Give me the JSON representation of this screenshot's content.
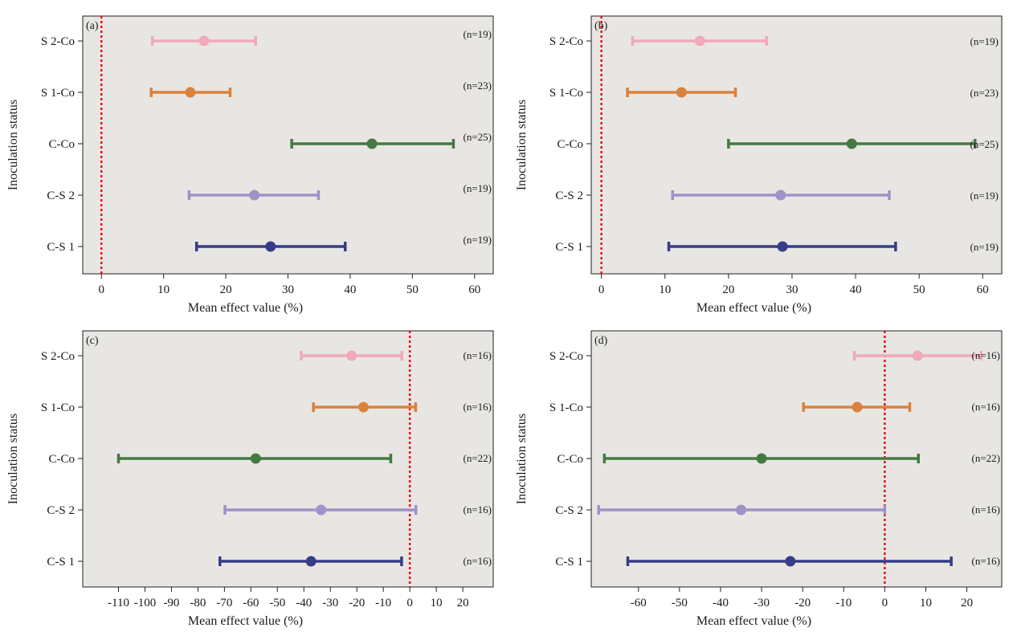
{
  "colors": {
    "background": "#e8e6e3",
    "zero_line": "#e8121b",
    "S 2-Co": "#f0aab9",
    "S 1-Co": "#d9823d",
    "C-Co": "#447a42",
    "C-S 2": "#9e92c8",
    "C-S 1": "#363c88"
  },
  "chart_data": [
    {
      "type": "forest",
      "panel_label": "(a)",
      "xlabel": "Mean effect value (%)",
      "ylabel": "Inoculation status",
      "xlim": [
        -3,
        63
      ],
      "xticks": [
        0,
        10,
        20,
        30,
        40,
        50,
        60
      ],
      "zero_line": 0,
      "categories": [
        "S 2-Co",
        "S 1-Co",
        "C-Co",
        "C-S 2",
        "C-S 1"
      ],
      "series": [
        {
          "category": "S 2-Co",
          "mean": 16.5,
          "low": 8.2,
          "high": 24.8,
          "n": "(n=19)"
        },
        {
          "category": "S 1-Co",
          "mean": 14.3,
          "low": 8.0,
          "high": 20.7,
          "n": "(n=23)"
        },
        {
          "category": "C-Co",
          "mean": 43.5,
          "low": 30.6,
          "high": 56.6,
          "n": "(n=25)"
        },
        {
          "category": "C-S 2",
          "mean": 24.6,
          "low": 14.1,
          "high": 34.9,
          "n": "(n=19)"
        },
        {
          "category": "C-S 1",
          "mean": 27.2,
          "low": 15.3,
          "high": 39.2,
          "n": "(n=19)"
        }
      ]
    },
    {
      "type": "forest",
      "panel_label": "(b)",
      "xlabel": "Mean effect value (%)",
      "ylabel": "Inoculation status",
      "xlim": [
        -1.6,
        63
      ],
      "xticks": [
        0,
        10,
        20,
        30,
        40,
        50,
        60
      ],
      "zero_line": 0,
      "categories": [
        "S 2-Co",
        "S 1-Co",
        "C-Co",
        "C-S 2",
        "C-S 1"
      ],
      "series": [
        {
          "category": "S 2-Co",
          "mean": 15.5,
          "low": 4.9,
          "high": 26.0,
          "n": "(n=19)"
        },
        {
          "category": "S 1-Co",
          "mean": 12.6,
          "low": 4.1,
          "high": 21.1,
          "n": "(n=23)"
        },
        {
          "category": "C-Co",
          "mean": 39.4,
          "low": 20.0,
          "high": 58.8,
          "n": "(n=25)"
        },
        {
          "category": "C-S 2",
          "mean": 28.2,
          "low": 11.2,
          "high": 45.3,
          "n": "(n=19)"
        },
        {
          "category": "C-S 1",
          "mean": 28.5,
          "low": 10.6,
          "high": 46.3,
          "n": "(n=19)"
        }
      ]
    },
    {
      "type": "forest",
      "panel_label": "(c)",
      "xlabel": "Mean effect value (%)",
      "ylabel": "Inoculation status",
      "xlim": [
        -123.5,
        31.5
      ],
      "xticks": [
        -110,
        -100,
        -90,
        -80,
        -70,
        -60,
        -50,
        -40,
        -30,
        -20,
        -10,
        0,
        10,
        20
      ],
      "zero_line": 0,
      "categories": [
        "S 2-Co",
        "S 1-Co",
        "C-Co",
        "C-S 2",
        "C-S 1"
      ],
      "series": [
        {
          "category": "S 2-Co",
          "mean": -22.0,
          "low": -41.0,
          "high": -3.0,
          "n": "(n=16)"
        },
        {
          "category": "S 1-Co",
          "mean": -17.5,
          "low": -36.4,
          "high": 2.2,
          "n": "(n=16)"
        },
        {
          "category": "C-Co",
          "mean": -58.2,
          "low": -110.0,
          "high": -7.2,
          "n": "(n=22)"
        },
        {
          "category": "C-S 2",
          "mean": -33.5,
          "low": -69.8,
          "high": 2.3,
          "n": "(n=16)"
        },
        {
          "category": "C-S 1",
          "mean": -37.3,
          "low": -71.7,
          "high": -3.1,
          "n": "(n=16)"
        }
      ]
    },
    {
      "type": "forest",
      "panel_label": "(d)",
      "xlabel": "Mean effect value (%)",
      "ylabel": "Inoculation status",
      "xlim": [
        -71.5,
        28.5
      ],
      "xticks": [
        -60,
        -50,
        -40,
        -30,
        -20,
        -10,
        0,
        10,
        20
      ],
      "zero_line": 0,
      "categories": [
        "S 2-Co",
        "S 1-Co",
        "C-Co",
        "C-S 2",
        "C-S 1"
      ],
      "series": [
        {
          "category": "S 2-Co",
          "mean": 8.0,
          "low": -7.4,
          "high": 23.5,
          "n": "(n=16)"
        },
        {
          "category": "S 1-Co",
          "mean": -6.7,
          "low": -19.8,
          "high": 6.1,
          "n": "(n=16)"
        },
        {
          "category": "C-Co",
          "mean": -30.0,
          "low": -68.3,
          "high": 8.2,
          "n": "(n=22)"
        },
        {
          "category": "C-S 2",
          "mean": -35.0,
          "low": -69.7,
          "high": 0.0,
          "n": "(n=16)"
        },
        {
          "category": "C-S 1",
          "mean": -23.0,
          "low": -62.6,
          "high": 16.2,
          "n": "(n=16)"
        }
      ]
    }
  ]
}
